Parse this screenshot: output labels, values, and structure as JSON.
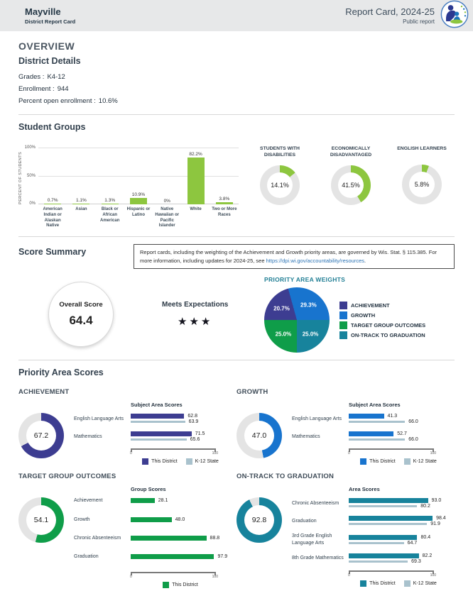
{
  "header": {
    "district_name": "Mayville",
    "subtitle": "District Report Card",
    "report_title": "Report Card, 2024-25",
    "report_type": "Public report"
  },
  "overview": {
    "title": "OVERVIEW",
    "district_details": {
      "title": "District Details",
      "rows": [
        {
          "label": "Grades :",
          "value": "K4-12"
        },
        {
          "label": "Enrollment :",
          "value": "944"
        },
        {
          "label": "Percent open enrollment :",
          "value": "10.6%"
        }
      ]
    }
  },
  "student_groups": {
    "title": "Student Groups"
  },
  "score_summary": {
    "title": "Score Summary",
    "note_text": "Report cards, including the weighting of the Achievement and Growth priority areas, are governed by Wis. Stat. § 115.385. For more information, including updates for 2024-25, see ",
    "note_link": "https://dpi.wi.gov/accountability/resources",
    "note_period": ".",
    "overall_score_label": "Overall Score",
    "overall_score": "64.4",
    "rating_label": "Meets Expectations",
    "rating_stars": "★★★"
  },
  "priority_areas": {
    "title": "Priority Area Scores"
  },
  "colors": {
    "achievement": "#3d3d91",
    "growth": "#1874ce",
    "target_group": "#0f9d49",
    "on_track": "#17839c",
    "student_groups_green": "#8dc63f",
    "state_bar": "#a9c2cd",
    "donut_track": "#e4e4e4",
    "link_blue": "#2d74b5"
  },
  "chart_data": [
    {
      "id": "student_groups_bar",
      "type": "bar",
      "title": "Student Groups",
      "ylabel": "PERCENT OF STUDENTS",
      "ylim": [
        0,
        100
      ],
      "yticks": [
        "0%",
        "50%",
        "100%"
      ],
      "categories": [
        "American Indian or Alaskan Native",
        "Asian",
        "Black or African American",
        "Hispanic or Latino",
        "Native Hawaiian or Pacific Islander",
        "White",
        "Two or More Races"
      ],
      "values": [
        0.7,
        1.1,
        1.3,
        10.9,
        0,
        82.2,
        3.8
      ],
      "value_labels": [
        "0.7%",
        "1.1%",
        "1.3%",
        "10.9%",
        "0%",
        "82.2%",
        "3.8%"
      ],
      "bar_color": "#8dc63f",
      "grid": true
    },
    {
      "id": "students_with_disabilities",
      "type": "donut",
      "title": "STUDENTS WITH DISABILITIES",
      "value": 14.1,
      "display": "14.1%",
      "color": "#8dc63f"
    },
    {
      "id": "economically_disadvantaged",
      "type": "donut",
      "title": "ECONOMICALLY DISADVANTAGED",
      "value": 41.5,
      "display": "41.5%",
      "color": "#8dc63f"
    },
    {
      "id": "english_learners",
      "type": "donut",
      "title": "ENGLISH LEARNERS",
      "value": 5.8,
      "display": "5.8%",
      "color": "#8dc63f"
    },
    {
      "id": "priority_area_weights",
      "type": "pie",
      "title": "PRIORITY AREA WEIGHTS",
      "legend_position": "right",
      "slices": [
        {
          "label": "ACHIEVEMENT",
          "value": 20.7,
          "display": "20.7%",
          "color": "#3d3d91"
        },
        {
          "label": "GROWTH",
          "value": 29.3,
          "display": "29.3%",
          "color": "#1874ce"
        },
        {
          "label": "TARGET GROUP OUTCOMES",
          "value": 25.0,
          "display": "25.0%",
          "color": "#0f9d49"
        },
        {
          "label": "ON-TRACK TO GRADUATION",
          "value": 25.0,
          "display": "25.0%",
          "color": "#17839c"
        }
      ]
    },
    {
      "id": "achievement",
      "type": "bar",
      "orientation": "horizontal",
      "title": "ACHIEVEMENT",
      "score": "67.2",
      "score_value": 67.2,
      "color": "#3d3d91",
      "chart_title": "Subject Area Scores",
      "xlim": [
        0,
        100
      ],
      "xticks": [
        "0",
        "100"
      ],
      "rows": [
        {
          "label": "English Language Arts",
          "district": 62.8,
          "state": 63.9
        },
        {
          "label": "Mathematics",
          "district": 71.5,
          "state": 65.6
        }
      ],
      "legend": [
        "This District",
        "K-12 State"
      ]
    },
    {
      "id": "growth",
      "type": "bar",
      "orientation": "horizontal",
      "title": "GROWTH",
      "score": "47.0",
      "score_value": 47.0,
      "color": "#1874ce",
      "chart_title": "Subject Area Scores",
      "xlim": [
        0,
        100
      ],
      "xticks": [
        "0",
        "100"
      ],
      "rows": [
        {
          "label": "English Language Arts",
          "district": 41.3,
          "state": 66.0
        },
        {
          "label": "Mathematics",
          "district": 52.7,
          "state": 66.0
        }
      ],
      "legend": [
        "This District",
        "K-12 State"
      ]
    },
    {
      "id": "target_group_outcomes",
      "type": "bar",
      "orientation": "horizontal",
      "title": "TARGET GROUP OUTCOMES",
      "score": "54.1",
      "score_value": 54.1,
      "color": "#0f9d49",
      "chart_title": "Group Scores",
      "xlim": [
        0,
        100
      ],
      "xticks": [
        "0",
        "100"
      ],
      "rows": [
        {
          "label": "Achievement",
          "district": 28.1
        },
        {
          "label": "Growth",
          "district": 48.0
        },
        {
          "label": "Chronic Absenteeism",
          "district": 88.8
        },
        {
          "label": "Graduation",
          "district": 97.9
        }
      ],
      "legend": [
        "This District"
      ]
    },
    {
      "id": "on_track_to_graduation",
      "type": "bar",
      "orientation": "horizontal",
      "title": "ON-TRACK TO GRADUATION",
      "score": "92.8",
      "score_value": 92.8,
      "color": "#17839c",
      "chart_title": "Area Scores",
      "xlim": [
        0,
        100
      ],
      "xticks": [
        "0",
        "100"
      ],
      "rows": [
        {
          "label": "Chronic Absenteeism",
          "district": 93.0,
          "state": 80.2
        },
        {
          "label": "Graduation",
          "district": 98.4,
          "state": 91.9
        },
        {
          "label": "3rd Grade English Language Arts",
          "district": 80.4,
          "state": 64.7
        },
        {
          "label": "8th Grade Mathematics",
          "district": 82.2,
          "state": 69.3
        }
      ],
      "legend": [
        "This District",
        "K-12 State"
      ]
    }
  ]
}
